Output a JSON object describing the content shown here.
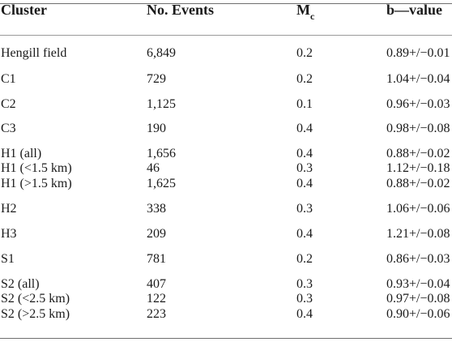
{
  "table": {
    "headers": {
      "cluster": "Cluster",
      "events": "No. Events",
      "mc_main": "M",
      "mc_sub": "c",
      "bvalue": "b—value"
    },
    "rows": [
      {
        "cluster": "Hengill field",
        "events": "6,849",
        "mc": "0.2",
        "b": "0.89+/−0.01"
      },
      {
        "cluster": "C1",
        "events": "729",
        "mc": "0.2",
        "b": "1.04+/−0.04"
      },
      {
        "cluster": "C2",
        "events": "1,125",
        "mc": "0.1",
        "b": "0.96+/−0.03"
      },
      {
        "cluster": "C3",
        "events": "190",
        "mc": "0.4",
        "b": "0.98+/−0.08"
      },
      {
        "cluster": "H1 (all)",
        "events": "1,656",
        "mc": "0.4",
        "b": "0.88+/−0.02"
      },
      {
        "cluster": "H1 (<1.5 km)",
        "events": "46",
        "mc": "0.3",
        "b": "1.12+/−0.18"
      },
      {
        "cluster": "H1 (>1.5 km)",
        "events": "1,625",
        "mc": "0.4",
        "b": "0.88+/−0.02"
      },
      {
        "cluster": "H2",
        "events": "338",
        "mc": "0.3",
        "b": "1.06+/−0.06"
      },
      {
        "cluster": "H3",
        "events": "209",
        "mc": "0.4",
        "b": "1.21+/−0.08"
      },
      {
        "cluster": "S1",
        "events": "781",
        "mc": "0.2",
        "b": "0.86+/−0.03"
      },
      {
        "cluster": "S2 (all)",
        "events": "407",
        "mc": "0.3",
        "b": "0.93+/−0.04"
      },
      {
        "cluster": "S2 (<2.5 km)",
        "events": "122",
        "mc": "0.3",
        "b": "0.97+/−0.08"
      },
      {
        "cluster": "S2 (>2.5 km)",
        "events": "223",
        "mc": "0.4",
        "b": "0.90+/−0.06"
      }
    ]
  }
}
